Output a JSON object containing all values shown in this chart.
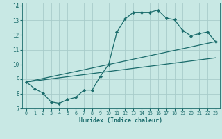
{
  "xlabel": "Humidex (Indice chaleur)",
  "ylabel": "",
  "bg_color": "#c8e8e4",
  "grid_color": "#a8ccca",
  "line_color": "#1a6b6b",
  "xlim": [
    -0.5,
    23.5
  ],
  "ylim": [
    7,
    14.2
  ],
  "xticks": [
    0,
    1,
    2,
    3,
    4,
    5,
    6,
    7,
    8,
    9,
    10,
    11,
    12,
    13,
    14,
    15,
    16,
    17,
    18,
    19,
    20,
    21,
    22,
    23
  ],
  "yticks": [
    7,
    8,
    9,
    10,
    11,
    12,
    13,
    14
  ],
  "main_series": {
    "x": [
      0,
      1,
      2,
      3,
      4,
      5,
      6,
      7,
      8,
      9,
      10,
      11,
      12,
      13,
      14,
      15,
      16,
      17,
      18,
      19,
      20,
      21,
      22,
      23
    ],
    "y": [
      8.8,
      8.35,
      8.05,
      7.45,
      7.35,
      7.6,
      7.75,
      8.25,
      8.25,
      9.2,
      10.0,
      12.2,
      13.1,
      13.55,
      13.55,
      13.55,
      13.7,
      13.15,
      13.05,
      12.3,
      11.95,
      12.1,
      12.2,
      11.55
    ]
  },
  "line1": {
    "x": [
      0,
      23
    ],
    "y": [
      8.8,
      11.55
    ]
  },
  "line2": {
    "x": [
      0,
      23
    ],
    "y": [
      8.8,
      10.45
    ]
  }
}
